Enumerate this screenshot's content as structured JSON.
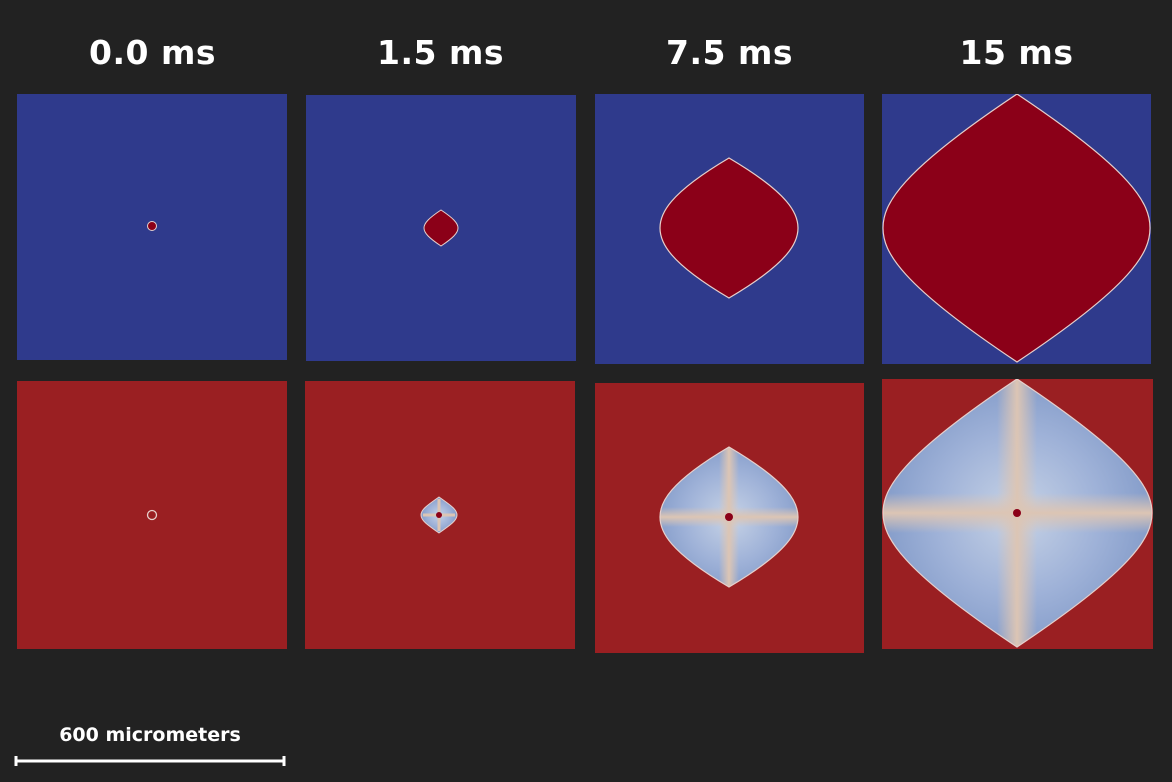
{
  "columns": [
    {
      "time_label": "0.0 ms"
    },
    {
      "time_label": "1.5 ms"
    },
    {
      "time_label": "7.5 ms"
    },
    {
      "time_label": "15 ms"
    }
  ],
  "scale_bar": {
    "label": "600 micrometers"
  },
  "colors": {
    "background": "#222222",
    "top_field": "#2f3a8c",
    "top_region": "#8b0018",
    "bottom_field": "#9a1f22",
    "bottom_light": "#c7d3e6",
    "bottom_blue": "#7e97c6",
    "bottom_beige": "#dcc5b4",
    "center_dot": "#8b0018",
    "outline": "#e7d0cc"
  }
}
